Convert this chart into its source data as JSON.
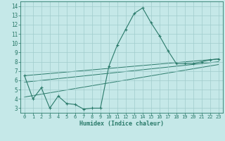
{
  "xlabel": "Humidex (Indice chaleur)",
  "bg_color": "#c5e8e8",
  "grid_color": "#a0cccc",
  "line_color": "#2a7a6a",
  "xlim": [
    -0.5,
    23.5
  ],
  "ylim": [
    2.5,
    14.5
  ],
  "xticks": [
    0,
    1,
    2,
    3,
    4,
    5,
    6,
    7,
    8,
    9,
    10,
    11,
    12,
    13,
    14,
    15,
    16,
    17,
    18,
    19,
    20,
    21,
    22,
    23
  ],
  "yticks": [
    3,
    4,
    5,
    6,
    7,
    8,
    9,
    10,
    11,
    12,
    13,
    14
  ],
  "main_series": {
    "x": [
      0,
      1,
      2,
      3,
      4,
      5,
      6,
      7,
      8,
      9,
      10,
      11,
      12,
      13,
      14,
      15,
      16,
      17,
      18,
      19,
      20,
      21,
      22,
      23
    ],
    "y": [
      6.5,
      4.0,
      5.2,
      3.0,
      4.3,
      3.5,
      3.4,
      2.9,
      3.0,
      3.0,
      7.5,
      9.8,
      11.5,
      13.2,
      13.8,
      12.2,
      10.8,
      9.2,
      7.8,
      7.8,
      7.8,
      8.0,
      8.2,
      8.3
    ]
  },
  "straight_lines": [
    {
      "x": [
        0,
        23
      ],
      "y": [
        6.5,
        8.3
      ]
    },
    {
      "x": [
        0,
        23
      ],
      "y": [
        5.8,
        8.0
      ]
    },
    {
      "x": [
        0,
        23
      ],
      "y": [
        4.2,
        7.7
      ]
    }
  ]
}
